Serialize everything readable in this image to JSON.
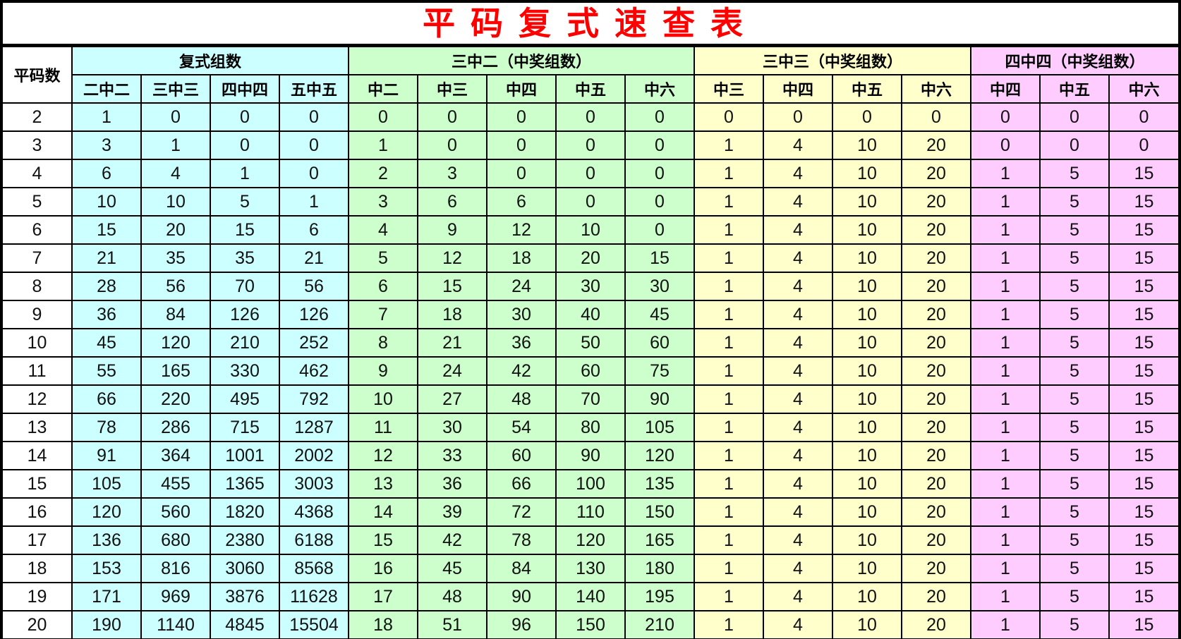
{
  "title": "平码复式速查表",
  "colors": {
    "title": "#ff0000",
    "group_0": "#ccffff",
    "group_1": "#ccffcc",
    "group_2": "#ffffcc",
    "group_3": "#ffccff"
  },
  "row_header": "平码数",
  "groups": [
    {
      "label": "复式组数",
      "columns": [
        "二中二",
        "三中三",
        "四中四",
        "五中五"
      ]
    },
    {
      "label": "三中二（中奖组数）",
      "columns": [
        "中二",
        "中三",
        "中四",
        "中五",
        "中六"
      ]
    },
    {
      "label": "三中三（中奖组数）",
      "columns": [
        "中三",
        "中四",
        "中五",
        "中六"
      ]
    },
    {
      "label": "四中四（中奖组数）",
      "columns": [
        "中四",
        "中五",
        "中六"
      ]
    }
  ],
  "rows": [
    [
      "2",
      "1",
      "0",
      "0",
      "0",
      "0",
      "0",
      "0",
      "0",
      "0",
      "0",
      "0",
      "0",
      "0",
      "0",
      "0",
      "0"
    ],
    [
      "3",
      "3",
      "1",
      "0",
      "0",
      "1",
      "0",
      "0",
      "0",
      "0",
      "1",
      "4",
      "10",
      "20",
      "0",
      "0",
      "0"
    ],
    [
      "4",
      "6",
      "4",
      "1",
      "0",
      "2",
      "3",
      "0",
      "0",
      "0",
      "1",
      "4",
      "10",
      "20",
      "1",
      "5",
      "15"
    ],
    [
      "5",
      "10",
      "10",
      "5",
      "1",
      "3",
      "6",
      "6",
      "0",
      "0",
      "1",
      "4",
      "10",
      "20",
      "1",
      "5",
      "15"
    ],
    [
      "6",
      "15",
      "20",
      "15",
      "6",
      "4",
      "9",
      "12",
      "10",
      "0",
      "1",
      "4",
      "10",
      "20",
      "1",
      "5",
      "15"
    ],
    [
      "7",
      "21",
      "35",
      "35",
      "21",
      "5",
      "12",
      "18",
      "20",
      "15",
      "1",
      "4",
      "10",
      "20",
      "1",
      "5",
      "15"
    ],
    [
      "8",
      "28",
      "56",
      "70",
      "56",
      "6",
      "15",
      "24",
      "30",
      "30",
      "1",
      "4",
      "10",
      "20",
      "1",
      "5",
      "15"
    ],
    [
      "9",
      "36",
      "84",
      "126",
      "126",
      "7",
      "18",
      "30",
      "40",
      "45",
      "1",
      "4",
      "10",
      "20",
      "1",
      "5",
      "15"
    ],
    [
      "10",
      "45",
      "120",
      "210",
      "252",
      "8",
      "21",
      "36",
      "50",
      "60",
      "1",
      "4",
      "10",
      "20",
      "1",
      "5",
      "15"
    ],
    [
      "11",
      "55",
      "165",
      "330",
      "462",
      "9",
      "24",
      "42",
      "60",
      "75",
      "1",
      "4",
      "10",
      "20",
      "1",
      "5",
      "15"
    ],
    [
      "12",
      "66",
      "220",
      "495",
      "792",
      "10",
      "27",
      "48",
      "70",
      "90",
      "1",
      "4",
      "10",
      "20",
      "1",
      "5",
      "15"
    ],
    [
      "13",
      "78",
      "286",
      "715",
      "1287",
      "11",
      "30",
      "54",
      "80",
      "105",
      "1",
      "4",
      "10",
      "20",
      "1",
      "5",
      "15"
    ],
    [
      "14",
      "91",
      "364",
      "1001",
      "2002",
      "12",
      "33",
      "60",
      "90",
      "120",
      "1",
      "4",
      "10",
      "20",
      "1",
      "5",
      "15"
    ],
    [
      "15",
      "105",
      "455",
      "1365",
      "3003",
      "13",
      "36",
      "66",
      "100",
      "135",
      "1",
      "4",
      "10",
      "20",
      "1",
      "5",
      "15"
    ],
    [
      "16",
      "120",
      "560",
      "1820",
      "4368",
      "14",
      "39",
      "72",
      "110",
      "150",
      "1",
      "4",
      "10",
      "20",
      "1",
      "5",
      "15"
    ],
    [
      "17",
      "136",
      "680",
      "2380",
      "6188",
      "15",
      "42",
      "78",
      "120",
      "165",
      "1",
      "4",
      "10",
      "20",
      "1",
      "5",
      "15"
    ],
    [
      "18",
      "153",
      "816",
      "3060",
      "8568",
      "16",
      "45",
      "84",
      "130",
      "180",
      "1",
      "4",
      "10",
      "20",
      "1",
      "5",
      "15"
    ],
    [
      "19",
      "171",
      "969",
      "3876",
      "11628",
      "17",
      "48",
      "90",
      "140",
      "195",
      "1",
      "4",
      "10",
      "20",
      "1",
      "5",
      "15"
    ],
    [
      "20",
      "190",
      "1140",
      "4845",
      "15504",
      "18",
      "51",
      "96",
      "150",
      "210",
      "1",
      "4",
      "10",
      "20",
      "1",
      "5",
      "15"
    ]
  ]
}
